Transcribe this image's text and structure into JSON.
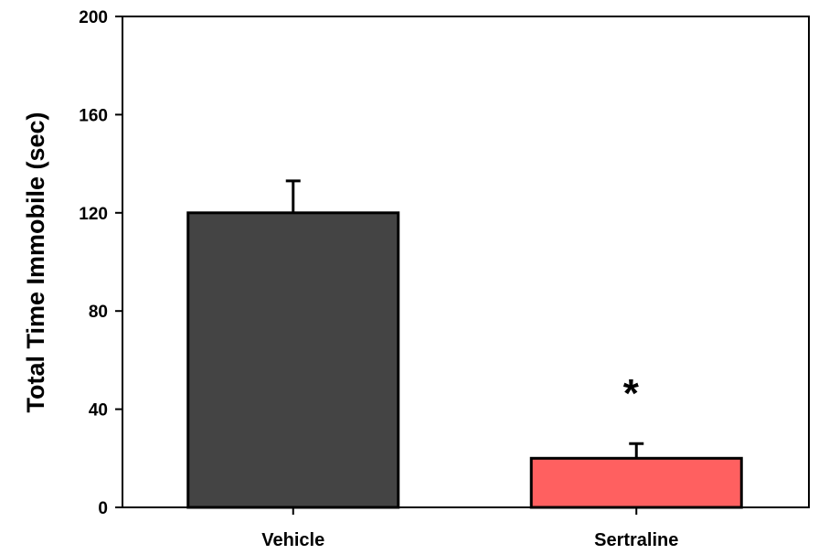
{
  "chart_data": {
    "type": "bar",
    "title": "",
    "xlabel": "",
    "ylabel": "Total Time Immobile (sec)",
    "ylim": [
      0,
      200
    ],
    "yticks": [
      0,
      40,
      80,
      120,
      160,
      200
    ],
    "categories": [
      "Vehicle",
      "Sertraline"
    ],
    "values": [
      120,
      20
    ],
    "errors": [
      13,
      6
    ],
    "bar_colors": [
      "#444444",
      "#ff6060"
    ],
    "annotations": [
      {
        "category": "Sertraline",
        "text": "*"
      }
    ],
    "grid": false,
    "legend": "none"
  }
}
